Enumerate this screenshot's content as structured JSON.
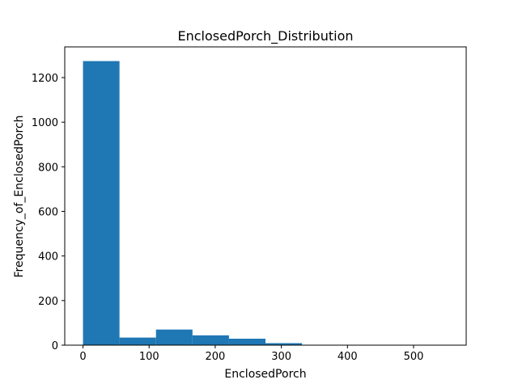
{
  "chart_data": {
    "type": "bar",
    "title": "EnclosedPorch_Distribution",
    "xlabel": "EnclosedPorch",
    "ylabel": "Frequency_of_EnclosedPorch",
    "bin_edges": [
      0,
      55.2,
      110.4,
      165.6,
      220.8,
      276,
      331.2,
      386.4,
      441.6,
      496.8,
      552
    ],
    "values": [
      1274,
      34,
      70,
      44,
      29,
      9,
      0,
      0,
      0,
      1
    ],
    "xlim": [
      -27.6,
      579.6
    ],
    "ylim": [
      0,
      1337.7
    ],
    "xticks": [
      0,
      100,
      200,
      300,
      400,
      500
    ],
    "yticks": [
      0,
      200,
      400,
      600,
      800,
      1000,
      1200
    ],
    "grid": false,
    "bar_color": "#1f77b4"
  }
}
